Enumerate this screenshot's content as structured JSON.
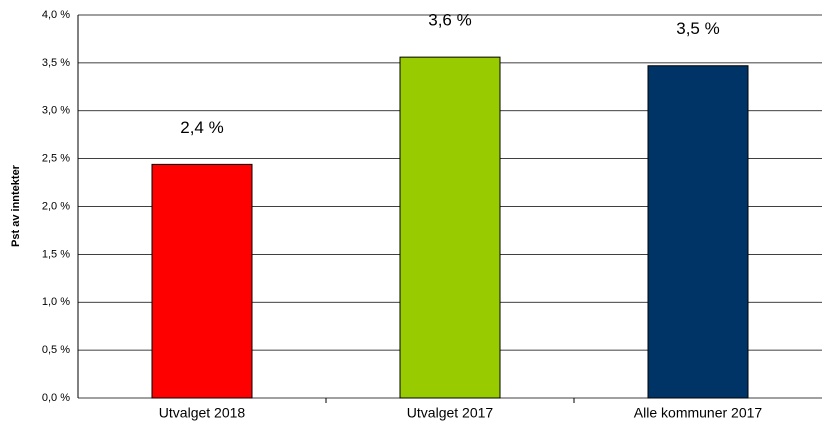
{
  "chart_data": {
    "type": "bar",
    "y_label": "Pst av inntekter",
    "categories": [
      "Utvalget 2018",
      "Utvalget 2017",
      "Alle kommuner 2017"
    ],
    "values": [
      2.44,
      3.56,
      3.47
    ],
    "value_labels": [
      "2,4 %",
      "3,6 %",
      "3,5 %"
    ],
    "colors": [
      "#ff0000",
      "#99cc00",
      "#003366"
    ],
    "ylim": [
      0,
      4
    ],
    "yticks": [
      {
        "value": 0,
        "label": "0,0 %"
      },
      {
        "value": 0.5,
        "label": "0,5 %"
      },
      {
        "value": 1,
        "label": "1,0 %"
      },
      {
        "value": 1.5,
        "label": "1,5 %"
      },
      {
        "value": 2,
        "label": "2,0 %"
      },
      {
        "value": 2.5,
        "label": "2,5 %"
      },
      {
        "value": 3,
        "label": "3,0 %"
      },
      {
        "value": 3.5,
        "label": "3,5 %"
      },
      {
        "value": 4,
        "label": "4,0 %"
      }
    ],
    "grid": true
  }
}
